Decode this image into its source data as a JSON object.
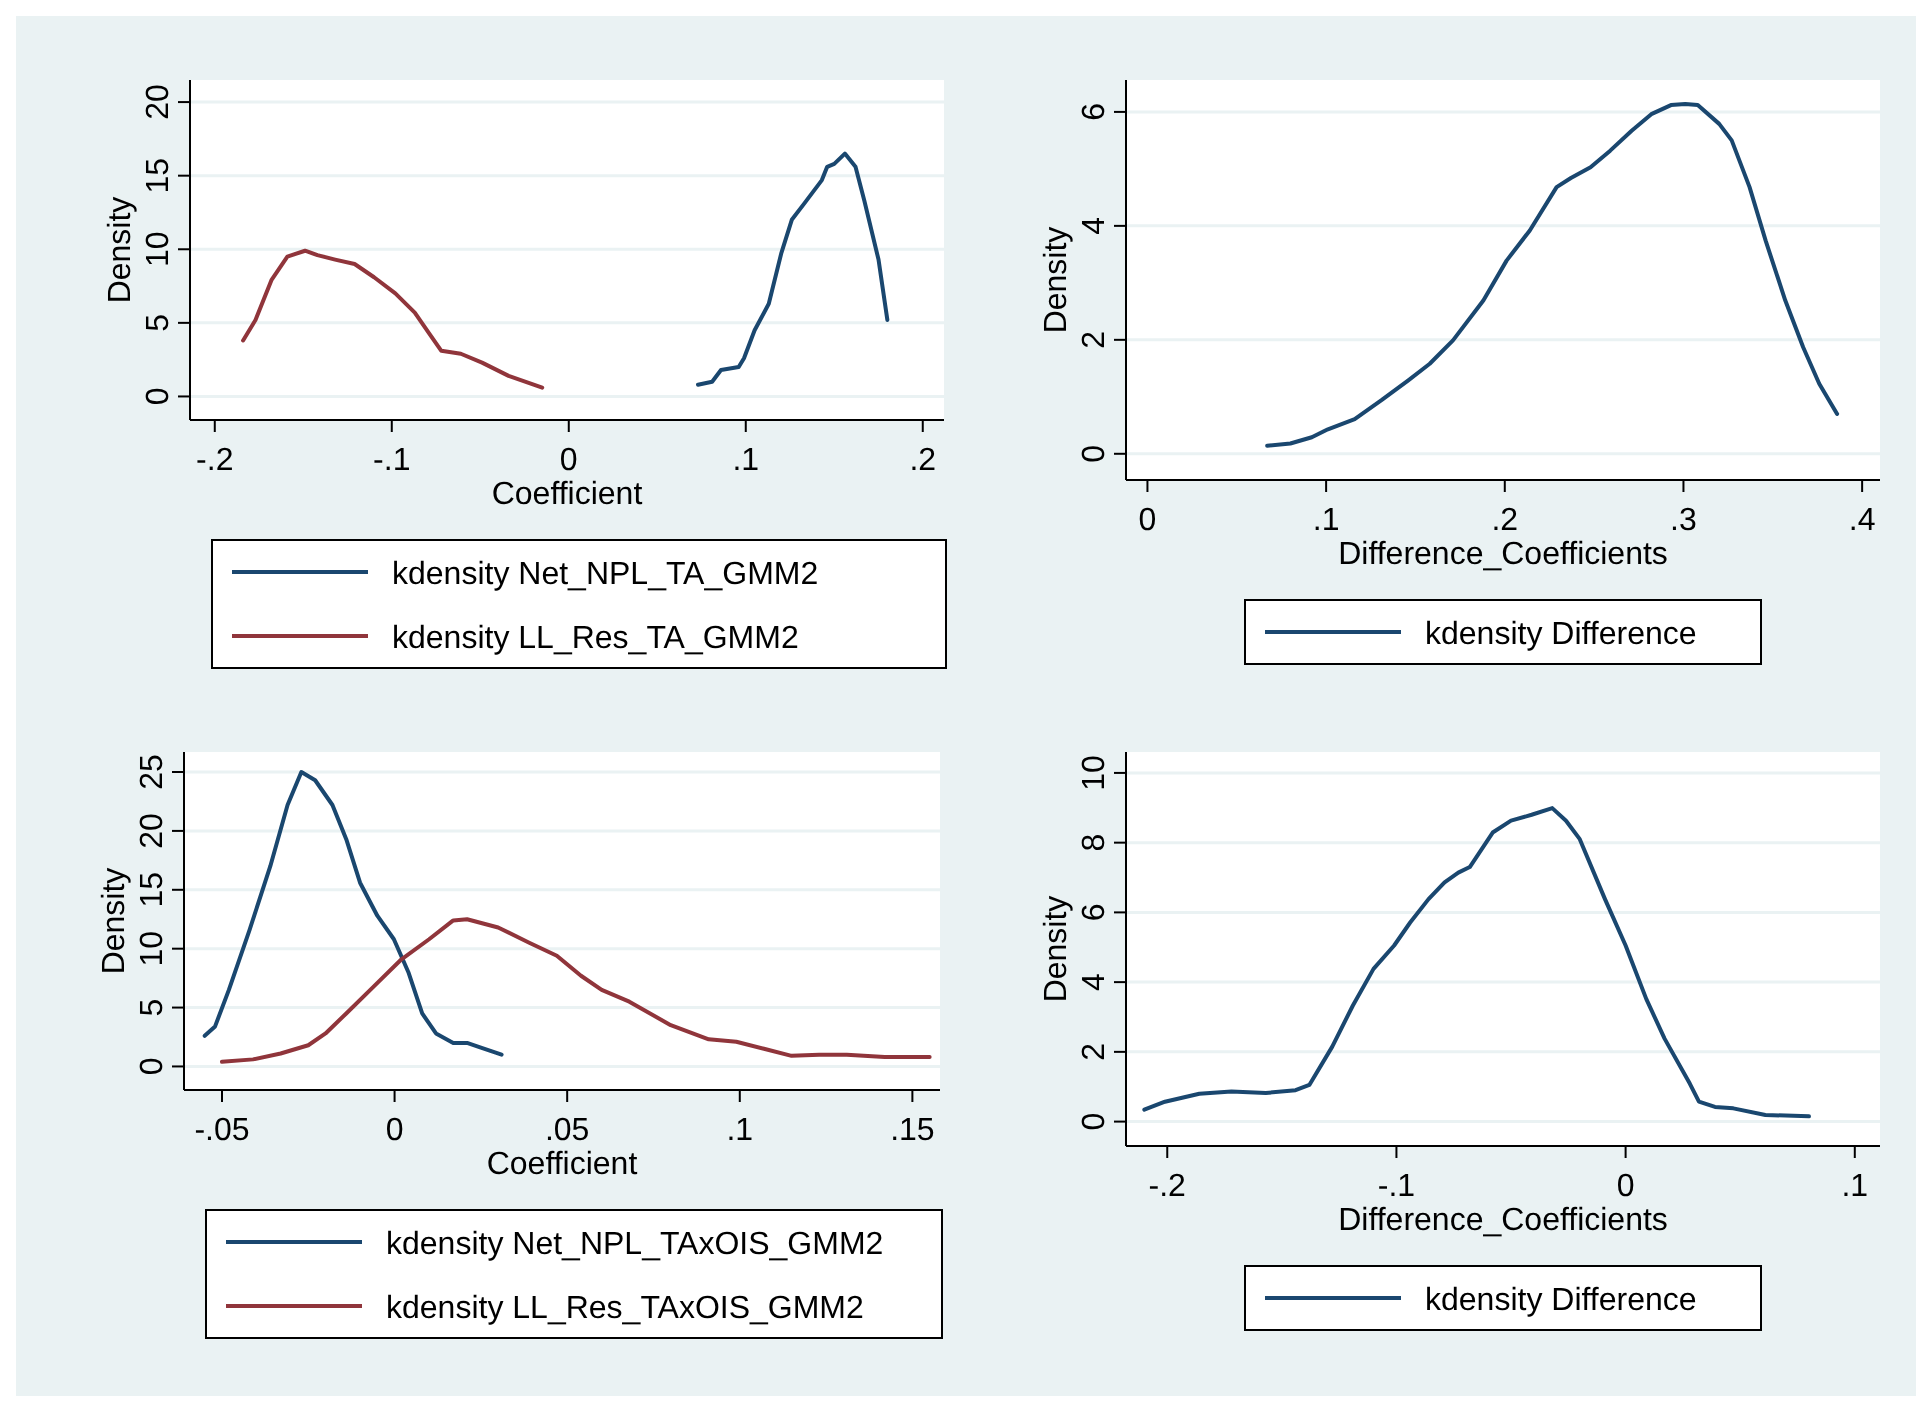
{
  "chart_data": [
    {
      "type": "line",
      "xlabel": "Coefficient",
      "ylabel": "Density",
      "xlim": [
        -0.214,
        0.212
      ],
      "ylim": [
        -1.6,
        21.5
      ],
      "xticks": [
        {
          "value": -0.2,
          "label": "-.2"
        },
        {
          "value": -0.1,
          "label": "-.1"
        },
        {
          "value": 0,
          "label": "0"
        },
        {
          "value": 0.1,
          "label": ".1"
        },
        {
          "value": 0.2,
          "label": ".2"
        }
      ],
      "yticks": [
        0,
        5,
        10,
        15,
        20
      ],
      "grid": "y",
      "legend": "bottom",
      "series": [
        {
          "name": "kdensity Net_NPL_TA_GMM2",
          "color": "#1a476f",
          "x": [
            0.073,
            0.081,
            0.086,
            0.096,
            0.099,
            0.105,
            0.113,
            0.12,
            0.126,
            0.133,
            0.143,
            0.146,
            0.15,
            0.156,
            0.162,
            0.167,
            0.175,
            0.18
          ],
          "values": [
            0.8,
            1.0,
            1.8,
            2.0,
            2.6,
            4.5,
            6.3,
            9.7,
            12.0,
            13.1,
            14.7,
            15.6,
            15.8,
            16.5,
            15.6,
            13.3,
            9.3,
            5.2
          ]
        },
        {
          "name": "kdensity LL_Res_TA_GMM2",
          "color": "#90353b",
          "x": [
            -0.184,
            -0.177,
            -0.168,
            -0.159,
            -0.149,
            -0.142,
            -0.132,
            -0.121,
            -0.11,
            -0.098,
            -0.087,
            -0.079,
            -0.072,
            -0.061,
            -0.049,
            -0.034,
            -0.015
          ],
          "values": [
            3.8,
            5.2,
            7.9,
            9.5,
            9.9,
            9.6,
            9.3,
            9.0,
            8.1,
            7.0,
            5.7,
            4.3,
            3.1,
            2.9,
            2.3,
            1.4,
            0.6
          ]
        }
      ]
    },
    {
      "type": "line",
      "xlabel": "Difference_Coefficients",
      "ylabel": "Density",
      "xlim": [
        -0.012,
        0.41
      ],
      "ylim": [
        -0.46,
        6.56
      ],
      "xticks": [
        {
          "value": 0,
          "label": "0"
        },
        {
          "value": 0.1,
          "label": ".1"
        },
        {
          "value": 0.2,
          "label": ".2"
        },
        {
          "value": 0.3,
          "label": ".3"
        },
        {
          "value": 0.4,
          "label": ".4"
        }
      ],
      "yticks": [
        0,
        2,
        4,
        6
      ],
      "grid": "y",
      "legend": "bottom",
      "series": [
        {
          "name": "kdensity Difference",
          "color": "#1a476f",
          "x": [
            0.067,
            0.08,
            0.092,
            0.101,
            0.116,
            0.131,
            0.146,
            0.158,
            0.171,
            0.188,
            0.201,
            0.214,
            0.229,
            0.237,
            0.248,
            0.259,
            0.271,
            0.282,
            0.293,
            0.301,
            0.308,
            0.32,
            0.327,
            0.337,
            0.346,
            0.357,
            0.367,
            0.376,
            0.386
          ],
          "values": [
            0.14,
            0.18,
            0.29,
            0.43,
            0.61,
            0.94,
            1.29,
            1.58,
            1.99,
            2.69,
            3.39,
            3.92,
            4.68,
            4.84,
            5.03,
            5.32,
            5.67,
            5.96,
            6.12,
            6.14,
            6.12,
            5.79,
            5.5,
            4.68,
            3.74,
            2.69,
            1.87,
            1.23,
            0.7
          ]
        }
      ]
    },
    {
      "type": "line",
      "xlabel": "Coefficient",
      "ylabel": "Density",
      "xlim": [
        -0.061,
        0.158
      ],
      "ylim": [
        -2.0,
        26.7
      ],
      "xticks": [
        {
          "value": -0.05,
          "label": "-.05"
        },
        {
          "value": 0,
          "label": "0"
        },
        {
          "value": 0.05,
          "label": ".05"
        },
        {
          "value": 0.1,
          "label": ".1"
        },
        {
          "value": 0.15,
          "label": ".15"
        }
      ],
      "yticks": [
        0,
        5,
        10,
        15,
        20,
        25
      ],
      "grid": "y",
      "legend": "bottom",
      "series": [
        {
          "name": "kdensity Net_NPL_TAxOIS_GMM2",
          "color": "#1a476f",
          "x": [
            -0.055,
            -0.052,
            -0.048,
            -0.042,
            -0.036,
            -0.031,
            -0.027,
            -0.023,
            -0.018,
            -0.014,
            -0.01,
            -0.005,
            -0.0002,
            0.004,
            0.008,
            0.012,
            0.017,
            0.021,
            0.025,
            0.031
          ],
          "values": [
            2.6,
            3.4,
            6.5,
            11.6,
            17.0,
            22.2,
            25.0,
            24.3,
            22.2,
            19.3,
            15.6,
            12.8,
            10.8,
            8.0,
            4.5,
            2.8,
            2.0,
            2.0,
            1.6,
            1.0
          ]
        },
        {
          "name": "kdensity LL_Res_TAxOIS_GMM2",
          "color": "#90353b",
          "x": [
            -0.05,
            -0.041,
            -0.033,
            -0.025,
            -0.02,
            -0.014,
            -0.006,
            0.002,
            0.01,
            0.017,
            0.021,
            0.03,
            0.039,
            0.047,
            0.054,
            0.06,
            0.068,
            0.08,
            0.091,
            0.099,
            0.107,
            0.115,
            0.123,
            0.131,
            0.142,
            0.155
          ],
          "values": [
            0.4,
            0.6,
            1.1,
            1.8,
            2.8,
            4.5,
            6.8,
            9.1,
            10.8,
            12.4,
            12.5,
            11.8,
            10.5,
            9.4,
            7.7,
            6.5,
            5.5,
            3.5,
            2.3,
            2.1,
            1.5,
            0.9,
            1.0,
            1.0,
            0.8,
            0.8
          ]
        }
      ]
    },
    {
      "type": "line",
      "xlabel": "Difference_Coefficients",
      "ylabel": "Density",
      "xlim": [
        -0.218,
        0.111
      ],
      "ylim": [
        -0.7,
        10.6
      ],
      "xticks": [
        {
          "value": -0.2,
          "label": "-.2"
        },
        {
          "value": -0.1,
          "label": "-.1"
        },
        {
          "value": 0,
          "label": "0"
        },
        {
          "value": 0.1,
          "label": ".1"
        }
      ],
      "yticks": [
        0,
        2,
        4,
        6,
        8,
        10
      ],
      "grid": "y",
      "legend": "bottom",
      "series": [
        {
          "name": "kdensity Difference",
          "color": "#1a476f",
          "x": [
            -0.21,
            -0.201,
            -0.186,
            -0.172,
            -0.157,
            -0.144,
            -0.138,
            -0.128,
            -0.119,
            -0.11,
            -0.101,
            -0.094,
            -0.086,
            -0.079,
            -0.073,
            -0.068,
            -0.058,
            -0.05,
            -0.041,
            -0.032,
            -0.026,
            -0.02,
            -0.009,
            0.0,
            0.009,
            0.017,
            0.028,
            0.032,
            0.039,
            0.047,
            0.061,
            0.08
          ],
          "values": [
            0.34,
            0.57,
            0.8,
            0.86,
            0.82,
            0.9,
            1.05,
            2.15,
            3.33,
            4.38,
            5.05,
            5.71,
            6.38,
            6.86,
            7.14,
            7.3,
            8.29,
            8.63,
            8.8,
            8.99,
            8.63,
            8.1,
            6.38,
            5.05,
            3.52,
            2.38,
            1.09,
            0.57,
            0.42,
            0.38,
            0.19,
            0.15
          ]
        }
      ]
    }
  ]
}
